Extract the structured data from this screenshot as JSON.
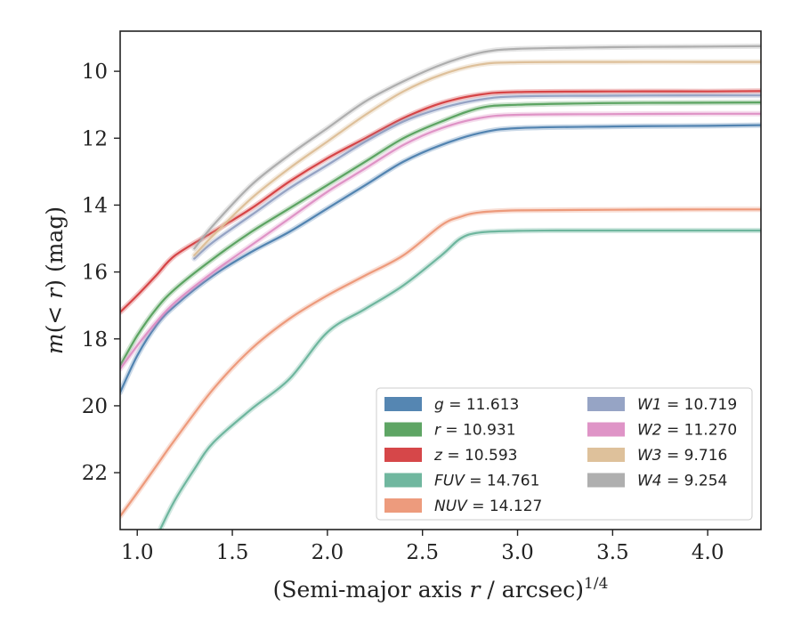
{
  "chart_data": {
    "type": "line",
    "xlabel_main": "(Semi-major axis ",
    "xlabel_var": "r",
    "xlabel_tail": " / arcsec)",
    "xlabel_exp": "1/4",
    "ylabel_main": "m",
    "ylabel_paren": "(< ",
    "ylabel_var": "r",
    "ylabel_tail": ") (mag)",
    "xlim": [
      0.91,
      4.28
    ],
    "ylim": [
      23.7,
      8.8
    ],
    "y_inverted": true,
    "x_ticks": [
      "1.0",
      "1.5",
      "2.0",
      "2.5",
      "3.0",
      "3.5",
      "4.0"
    ],
    "x_tick_values": [
      1.0,
      1.5,
      2.0,
      2.5,
      3.0,
      3.5,
      4.0
    ],
    "y_ticks": [
      "10",
      "12",
      "14",
      "16",
      "18",
      "20",
      "22"
    ],
    "y_tick_values": [
      10,
      12,
      14,
      16,
      18,
      20,
      22
    ],
    "grid": false,
    "legend_position": "bottom-right",
    "series": [
      {
        "band": "g",
        "value": "11.613",
        "color": "#4c7fae",
        "points": [
          [
            0.91,
            19.6
          ],
          [
            1.0,
            18.5
          ],
          [
            1.1,
            17.6
          ],
          [
            1.2,
            17.0
          ],
          [
            1.4,
            16.1
          ],
          [
            1.6,
            15.4
          ],
          [
            1.8,
            14.8
          ],
          [
            2.0,
            14.1
          ],
          [
            2.2,
            13.4
          ],
          [
            2.4,
            12.7
          ],
          [
            2.6,
            12.2
          ],
          [
            2.8,
            11.85
          ],
          [
            3.0,
            11.7
          ],
          [
            3.5,
            11.65
          ],
          [
            4.0,
            11.63
          ],
          [
            4.28,
            11.61
          ]
        ]
      },
      {
        "band": "r",
        "value": "10.931",
        "color": "#55a05c",
        "points": [
          [
            0.91,
            18.8
          ],
          [
            1.0,
            17.9
          ],
          [
            1.1,
            17.1
          ],
          [
            1.2,
            16.5
          ],
          [
            1.4,
            15.6
          ],
          [
            1.6,
            14.8
          ],
          [
            1.8,
            14.1
          ],
          [
            2.0,
            13.4
          ],
          [
            2.2,
            12.7
          ],
          [
            2.4,
            12.0
          ],
          [
            2.6,
            11.5
          ],
          [
            2.8,
            11.1
          ],
          [
            3.0,
            11.0
          ],
          [
            3.5,
            10.95
          ],
          [
            4.0,
            10.94
          ],
          [
            4.28,
            10.93
          ]
        ]
      },
      {
        "band": "z",
        "value": "10.593",
        "color": "#d43d3f",
        "points": [
          [
            0.91,
            17.2
          ],
          [
            1.0,
            16.7
          ],
          [
            1.1,
            16.1
          ],
          [
            1.2,
            15.5
          ],
          [
            1.4,
            14.8
          ],
          [
            1.6,
            14.1
          ],
          [
            1.8,
            13.3
          ],
          [
            2.0,
            12.6
          ],
          [
            2.2,
            12.0
          ],
          [
            2.4,
            11.4
          ],
          [
            2.6,
            10.95
          ],
          [
            2.8,
            10.7
          ],
          [
            3.0,
            10.62
          ],
          [
            3.5,
            10.6
          ],
          [
            4.0,
            10.6
          ],
          [
            4.28,
            10.59
          ]
        ]
      },
      {
        "band": "W1",
        "value": "10.719",
        "color": "#909fc2",
        "points": [
          [
            1.3,
            15.6
          ],
          [
            1.4,
            15.1
          ],
          [
            1.6,
            14.3
          ],
          [
            1.8,
            13.5
          ],
          [
            2.0,
            12.8
          ],
          [
            2.2,
            12.1
          ],
          [
            2.4,
            11.5
          ],
          [
            2.6,
            11.1
          ],
          [
            2.8,
            10.85
          ],
          [
            3.0,
            10.75
          ],
          [
            3.5,
            10.73
          ],
          [
            4.0,
            10.72
          ],
          [
            4.28,
            10.72
          ]
        ]
      },
      {
        "band": "W2",
        "value": "11.270",
        "color": "#dd8ec4",
        "points": [
          [
            0.91,
            18.9
          ],
          [
            1.0,
            18.2
          ],
          [
            1.1,
            17.5
          ],
          [
            1.2,
            16.9
          ],
          [
            1.4,
            16.0
          ],
          [
            1.6,
            15.2
          ],
          [
            1.8,
            14.4
          ],
          [
            2.0,
            13.6
          ],
          [
            2.2,
            12.9
          ],
          [
            2.4,
            12.2
          ],
          [
            2.6,
            11.7
          ],
          [
            2.8,
            11.4
          ],
          [
            3.0,
            11.3
          ],
          [
            3.5,
            11.28
          ],
          [
            4.0,
            11.27
          ],
          [
            4.28,
            11.27
          ]
        ]
      },
      {
        "band": "W3",
        "value": "9.716",
        "color": "#dcbe96",
        "points": [
          [
            1.3,
            15.5
          ],
          [
            1.4,
            14.9
          ],
          [
            1.6,
            13.8
          ],
          [
            1.8,
            12.9
          ],
          [
            2.0,
            12.1
          ],
          [
            2.2,
            11.3
          ],
          [
            2.4,
            10.6
          ],
          [
            2.6,
            10.1
          ],
          [
            2.8,
            9.8
          ],
          [
            3.0,
            9.73
          ],
          [
            3.5,
            9.72
          ],
          [
            4.0,
            9.72
          ],
          [
            4.28,
            9.72
          ]
        ]
      },
      {
        "band": "W4",
        "value": "9.254",
        "color": "#ababab",
        "points": [
          [
            1.3,
            15.3
          ],
          [
            1.4,
            14.6
          ],
          [
            1.6,
            13.4
          ],
          [
            1.8,
            12.5
          ],
          [
            2.0,
            11.7
          ],
          [
            2.2,
            10.9
          ],
          [
            2.4,
            10.3
          ],
          [
            2.6,
            9.8
          ],
          [
            2.8,
            9.45
          ],
          [
            3.0,
            9.33
          ],
          [
            3.5,
            9.28
          ],
          [
            4.0,
            9.26
          ],
          [
            4.28,
            9.25
          ]
        ]
      },
      {
        "band": "NUV",
        "value": "14.127",
        "color": "#ec9676",
        "points": [
          [
            0.91,
            23.3
          ],
          [
            1.0,
            22.6
          ],
          [
            1.1,
            21.8
          ],
          [
            1.2,
            21.0
          ],
          [
            1.4,
            19.5
          ],
          [
            1.6,
            18.3
          ],
          [
            1.8,
            17.4
          ],
          [
            2.0,
            16.7
          ],
          [
            2.2,
            16.1
          ],
          [
            2.4,
            15.5
          ],
          [
            2.6,
            14.6
          ],
          [
            2.7,
            14.35
          ],
          [
            2.8,
            14.22
          ],
          [
            3.0,
            14.16
          ],
          [
            3.5,
            14.14
          ],
          [
            4.0,
            14.13
          ],
          [
            4.28,
            14.13
          ]
        ]
      },
      {
        "band": "FUV",
        "value": "14.761",
        "color": "#68b39a",
        "points": [
          [
            1.12,
            23.7
          ],
          [
            1.2,
            22.8
          ],
          [
            1.3,
            21.9
          ],
          [
            1.4,
            21.1
          ],
          [
            1.6,
            20.1
          ],
          [
            1.8,
            19.2
          ],
          [
            2.0,
            17.8
          ],
          [
            2.2,
            17.1
          ],
          [
            2.4,
            16.4
          ],
          [
            2.6,
            15.5
          ],
          [
            2.7,
            15.0
          ],
          [
            2.8,
            14.82
          ],
          [
            3.0,
            14.77
          ],
          [
            3.2,
            14.76
          ],
          [
            3.5,
            14.76
          ],
          [
            4.0,
            14.76
          ],
          [
            4.28,
            14.76
          ]
        ]
      }
    ]
  }
}
